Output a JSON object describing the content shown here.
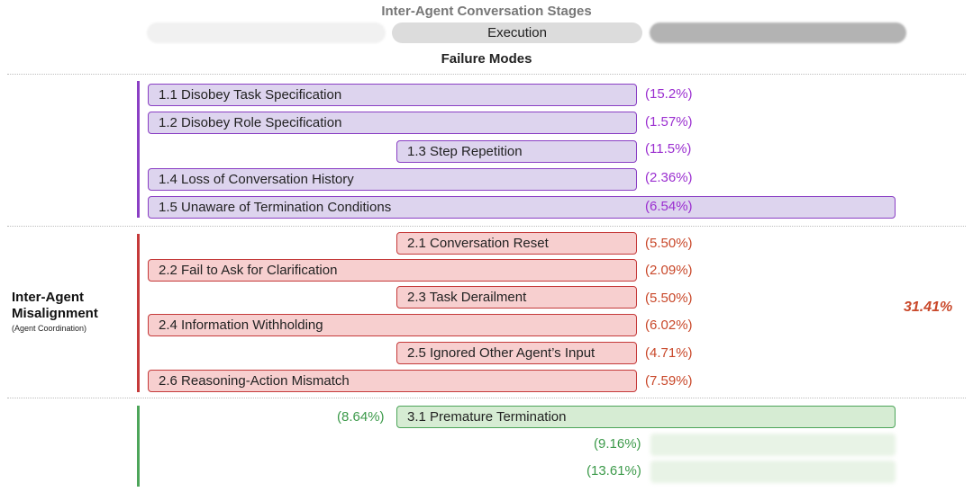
{
  "header": {
    "title": "Inter-Agent Conversation Stages",
    "stages": [
      "",
      "Execution",
      ""
    ]
  },
  "failure_modes_title": "Failure Modes",
  "categories": [
    {
      "color": "#8a3fc4",
      "items": [
        {
          "label": "1.1 Disobey Task Specification",
          "pct": "(15.2%)"
        },
        {
          "label": "1.2 Disobey Role Specification",
          "pct": "(1.57%)"
        },
        {
          "label": "1.3 Step Repetition",
          "pct": "(11.5%)"
        },
        {
          "label": "1.4 Loss of Conversation History",
          "pct": "(2.36%)"
        },
        {
          "label": "1.5 Unaware of Termination Conditions",
          "pct": "(6.54%)"
        }
      ]
    },
    {
      "name": "Inter-Agent Misalignment",
      "subtitle": "(Agent Coordination)",
      "total": "31.41%",
      "color": "#c53a3a",
      "items": [
        {
          "label": "2.1 Conversation Reset",
          "pct": "(5.50%)"
        },
        {
          "label": "2.2 Fail to Ask for Clarification",
          "pct": "(2.09%)"
        },
        {
          "label": "2.3 Task Derailment",
          "pct": "(5.50%)"
        },
        {
          "label": "2.4 Information Withholding",
          "pct": "(6.02%)"
        },
        {
          "label": "2.5 Ignored Other Agent’s Input",
          "pct": "(4.71%)"
        },
        {
          "label": "2.6 Reasoning-Action Mismatch",
          "pct": "(7.59%)"
        }
      ]
    },
    {
      "color": "#4da55a",
      "items": [
        {
          "label": "3.1  Premature Termination",
          "pct": "(8.64%)"
        },
        {
          "label": "",
          "pct": "(9.16%)"
        },
        {
          "label": "",
          "pct": "(13.61%)"
        }
      ]
    }
  ]
}
